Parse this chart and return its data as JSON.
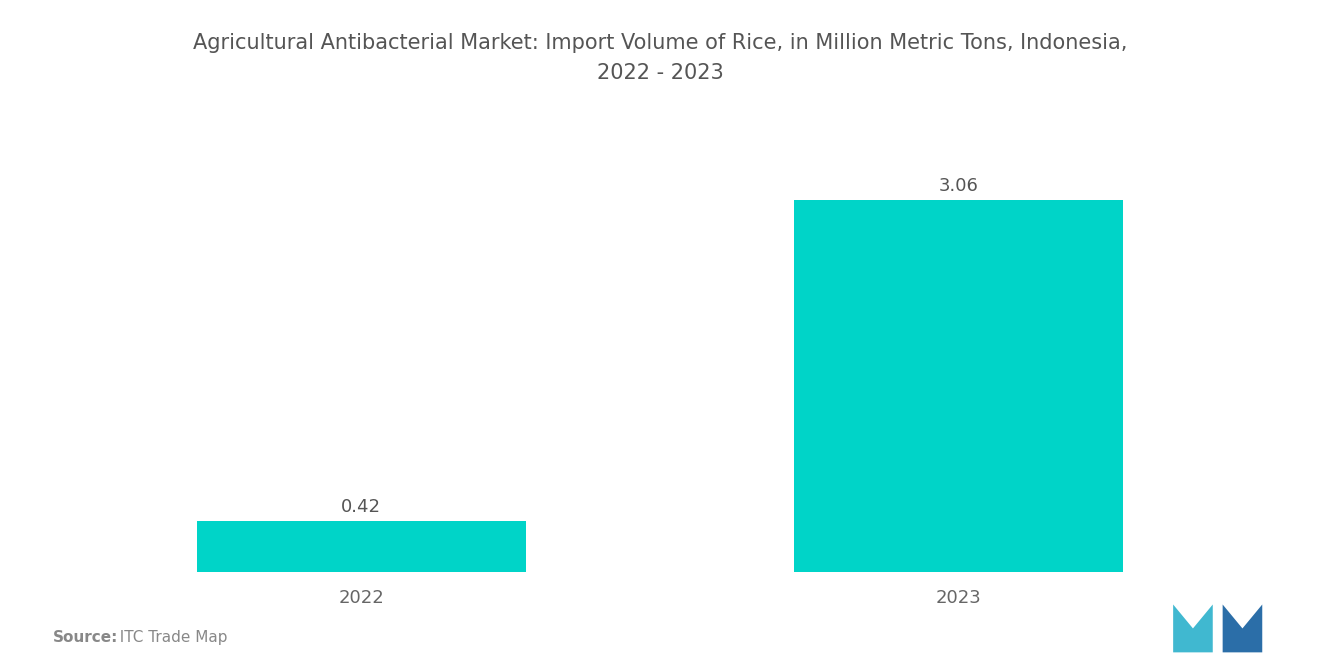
{
  "title": "Agricultural Antibacterial Market: Import Volume of Rice, in Million Metric Tons, Indonesia,\n2022 - 2023",
  "categories": [
    "2022",
    "2023"
  ],
  "values": [
    0.42,
    3.06
  ],
  "bar_color": "#00D4C8",
  "bar_width": 0.55,
  "background_color": "#ffffff",
  "title_fontsize": 15,
  "tick_fontsize": 13,
  "value_fontsize": 13,
  "source_text": "Source:  ITC Trade Map",
  "source_fontsize": 11,
  "ylim": [
    0,
    3.5
  ],
  "xlim": [
    -0.45,
    1.45
  ],
  "title_color": "#555555",
  "tick_color": "#666666",
  "value_color": "#555555",
  "source_bold": "Source:",
  "source_regular": "  ITC Trade Map",
  "source_color": "#888888"
}
